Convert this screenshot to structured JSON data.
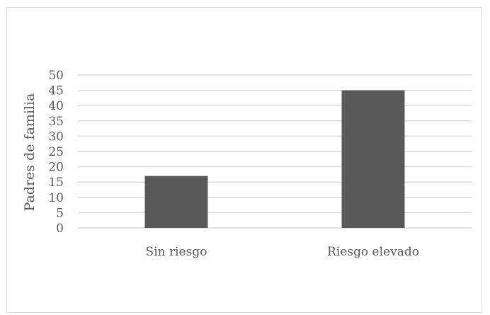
{
  "chart_data": {
    "type": "bar",
    "categories": [
      "Sin riesgo",
      "Riesgo elevado"
    ],
    "values": [
      17,
      45
    ],
    "title": "",
    "xlabel": "",
    "ylabel": "Padres de familia",
    "ylim": [
      0,
      50
    ],
    "yticks": [
      0,
      5,
      10,
      15,
      20,
      25,
      30,
      35,
      40,
      45,
      50
    ],
    "grid": true,
    "legend": "none",
    "colors": {
      "bar": "#595959",
      "grid": "#d9d9d9",
      "text": "#595959"
    }
  }
}
